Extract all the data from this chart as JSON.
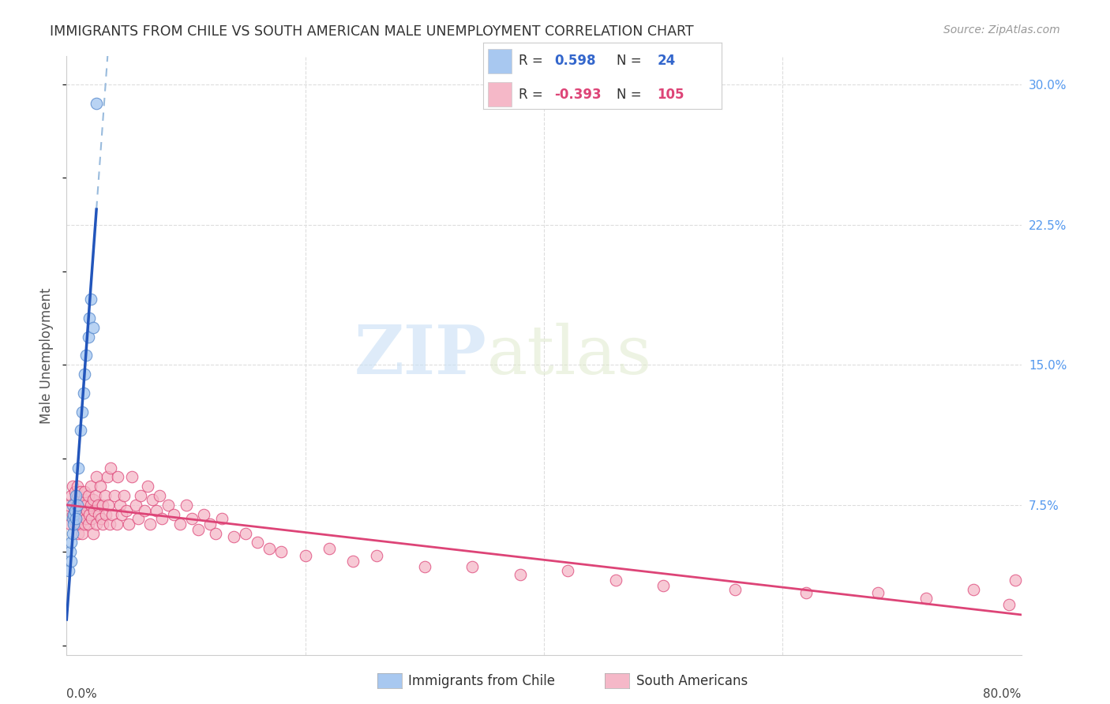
{
  "title": "IMMIGRANTS FROM CHILE VS SOUTH AMERICAN MALE UNEMPLOYMENT CORRELATION CHART",
  "source": "Source: ZipAtlas.com",
  "ylabel": "Male Unemployment",
  "ytick_values": [
    0.0,
    0.075,
    0.15,
    0.225,
    0.3
  ],
  "ytick_labels": [
    "",
    "7.5%",
    "15.0%",
    "22.5%",
    "30.0%"
  ],
  "xmin": 0.0,
  "xmax": 0.8,
  "ymin": -0.005,
  "ymax": 0.315,
  "legend_label1": "Immigrants from Chile",
  "legend_label2": "South Americans",
  "r1": 0.598,
  "n1": 24,
  "r2": -0.393,
  "n2": 105,
  "watermark_zip": "ZIP",
  "watermark_atlas": "atlas",
  "blue_color": "#a8c8f0",
  "pink_color": "#f5b8c8",
  "trendline1_color": "#2255bb",
  "trendline2_color": "#dd4477",
  "trendline_dashed_color": "#99bbdd",
  "blue_scatter_fill": "#a8c8f0",
  "blue_scatter_edge": "#5588cc",
  "pink_scatter_fill": "#f5b8c8",
  "pink_scatter_edge": "#dd4477",
  "grid_color": "#dddddd",
  "axis_color": "#cccccc",
  "ylabel_color": "#555555",
  "right_tick_color": "#5599ee",
  "title_color": "#333333",
  "source_color": "#999999",
  "blue_pts_x": [
    0.002,
    0.003,
    0.004,
    0.004,
    0.005,
    0.005,
    0.005,
    0.006,
    0.006,
    0.007,
    0.008,
    0.008,
    0.009,
    0.01,
    0.012,
    0.013,
    0.014,
    0.015,
    0.016,
    0.018,
    0.019,
    0.02,
    0.022,
    0.025
  ],
  "blue_pts_y": [
    0.04,
    0.05,
    0.055,
    0.045,
    0.06,
    0.068,
    0.075,
    0.065,
    0.07,
    0.072,
    0.08,
    0.068,
    0.075,
    0.095,
    0.115,
    0.125,
    0.135,
    0.145,
    0.155,
    0.165,
    0.175,
    0.185,
    0.17,
    0.29
  ],
  "pink_pts_x": [
    0.002,
    0.003,
    0.004,
    0.005,
    0.005,
    0.006,
    0.006,
    0.007,
    0.007,
    0.008,
    0.008,
    0.009,
    0.009,
    0.01,
    0.01,
    0.01,
    0.011,
    0.011,
    0.012,
    0.012,
    0.013,
    0.013,
    0.014,
    0.014,
    0.015,
    0.015,
    0.016,
    0.016,
    0.017,
    0.018,
    0.018,
    0.019,
    0.02,
    0.02,
    0.021,
    0.022,
    0.022,
    0.023,
    0.024,
    0.025,
    0.025,
    0.026,
    0.027,
    0.028,
    0.029,
    0.03,
    0.03,
    0.032,
    0.033,
    0.034,
    0.035,
    0.036,
    0.037,
    0.038,
    0.04,
    0.042,
    0.043,
    0.045,
    0.046,
    0.048,
    0.05,
    0.052,
    0.055,
    0.058,
    0.06,
    0.062,
    0.065,
    0.068,
    0.07,
    0.072,
    0.075,
    0.078,
    0.08,
    0.085,
    0.09,
    0.095,
    0.1,
    0.105,
    0.11,
    0.115,
    0.12,
    0.125,
    0.13,
    0.14,
    0.15,
    0.16,
    0.17,
    0.18,
    0.2,
    0.22,
    0.24,
    0.26,
    0.3,
    0.34,
    0.38,
    0.42,
    0.46,
    0.5,
    0.56,
    0.62,
    0.68,
    0.72,
    0.76,
    0.79,
    0.795
  ],
  "pink_pts_y": [
    0.075,
    0.065,
    0.08,
    0.07,
    0.085,
    0.068,
    0.075,
    0.072,
    0.082,
    0.065,
    0.078,
    0.07,
    0.085,
    0.06,
    0.072,
    0.08,
    0.065,
    0.075,
    0.068,
    0.082,
    0.06,
    0.075,
    0.07,
    0.078,
    0.065,
    0.082,
    0.068,
    0.075,
    0.072,
    0.065,
    0.08,
    0.07,
    0.075,
    0.085,
    0.068,
    0.06,
    0.078,
    0.072,
    0.08,
    0.065,
    0.09,
    0.075,
    0.07,
    0.085,
    0.068,
    0.075,
    0.065,
    0.08,
    0.07,
    0.09,
    0.075,
    0.065,
    0.095,
    0.07,
    0.08,
    0.065,
    0.09,
    0.075,
    0.07,
    0.08,
    0.072,
    0.065,
    0.09,
    0.075,
    0.068,
    0.08,
    0.072,
    0.085,
    0.065,
    0.078,
    0.072,
    0.08,
    0.068,
    0.075,
    0.07,
    0.065,
    0.075,
    0.068,
    0.062,
    0.07,
    0.065,
    0.06,
    0.068,
    0.058,
    0.06,
    0.055,
    0.052,
    0.05,
    0.048,
    0.052,
    0.045,
    0.048,
    0.042,
    0.042,
    0.038,
    0.04,
    0.035,
    0.032,
    0.03,
    0.028,
    0.028,
    0.025,
    0.03,
    0.022,
    0.035
  ]
}
